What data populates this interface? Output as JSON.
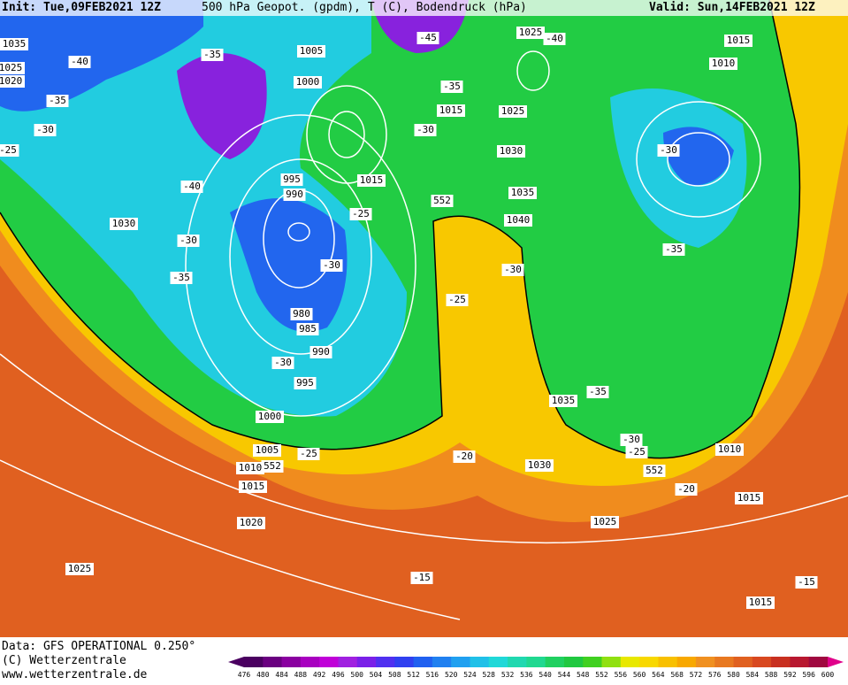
{
  "header": {
    "init": "Init: Tue,09FEB2021 12Z",
    "title": "500 hPa Geopot. (gpdm), T (C), Bodendruck (hPa)",
    "valid": "Valid: Sun,14FEB2021 12Z"
  },
  "footer": {
    "data": "Data: GFS OPERATIONAL 0.250°",
    "copyright": "(C) Wetterzentrale",
    "url": "www.wetterzentrale.de"
  },
  "map": {
    "pressure_labels": [
      "1035",
      "1025",
      "1020",
      "1005",
      "1000",
      "1025",
      "1015",
      "1010",
      "1015",
      "1025",
      "1030",
      "1015",
      "995",
      "990",
      "1035",
      "1030",
      "1040",
      "980",
      "985",
      "990",
      "995",
      "1035",
      "1000",
      "1005",
      "1010",
      "1010",
      "1030",
      "1015",
      "1015",
      "1020",
      "1025",
      "1025",
      "1015"
    ],
    "temperature_labels": [
      "-40",
      "-35",
      "-45",
      "-40",
      "-35",
      "-35",
      "-30",
      "-30",
      "-25",
      "-30",
      "-40",
      "-25",
      "-30",
      "-30",
      "-30",
      "-35",
      "-35",
      "-25",
      "-30",
      "-35",
      "-30",
      "-25",
      "-25",
      "-20",
      "-20",
      "-15",
      "-15"
    ],
    "height_labels": [
      "552",
      "552",
      "552"
    ]
  },
  "colorbar": {
    "ticks": [
      476,
      480,
      484,
      488,
      492,
      496,
      500,
      504,
      508,
      512,
      516,
      520,
      524,
      528,
      532,
      536,
      540,
      544,
      548,
      552,
      556,
      560,
      564,
      568,
      572,
      576,
      580,
      584,
      588,
      592,
      596,
      600
    ],
    "colors": [
      "#4a0060",
      "#6a0080",
      "#8a00a0",
      "#a800c0",
      "#c000d8",
      "#a020e0",
      "#7a20e8",
      "#5030f0",
      "#3040f0",
      "#2060f0",
      "#2080f0",
      "#20a0f0",
      "#20c0e8",
      "#20d8d8",
      "#20d8b0",
      "#20d890",
      "#20d060",
      "#20c840",
      "#40d020",
      "#90e010",
      "#e8e800",
      "#f8d800",
      "#f8c000",
      "#f8a800",
      "#f09020",
      "#e87820",
      "#e06020",
      "#d84820",
      "#c83020",
      "#b81830",
      "#a00840"
    ]
  }
}
